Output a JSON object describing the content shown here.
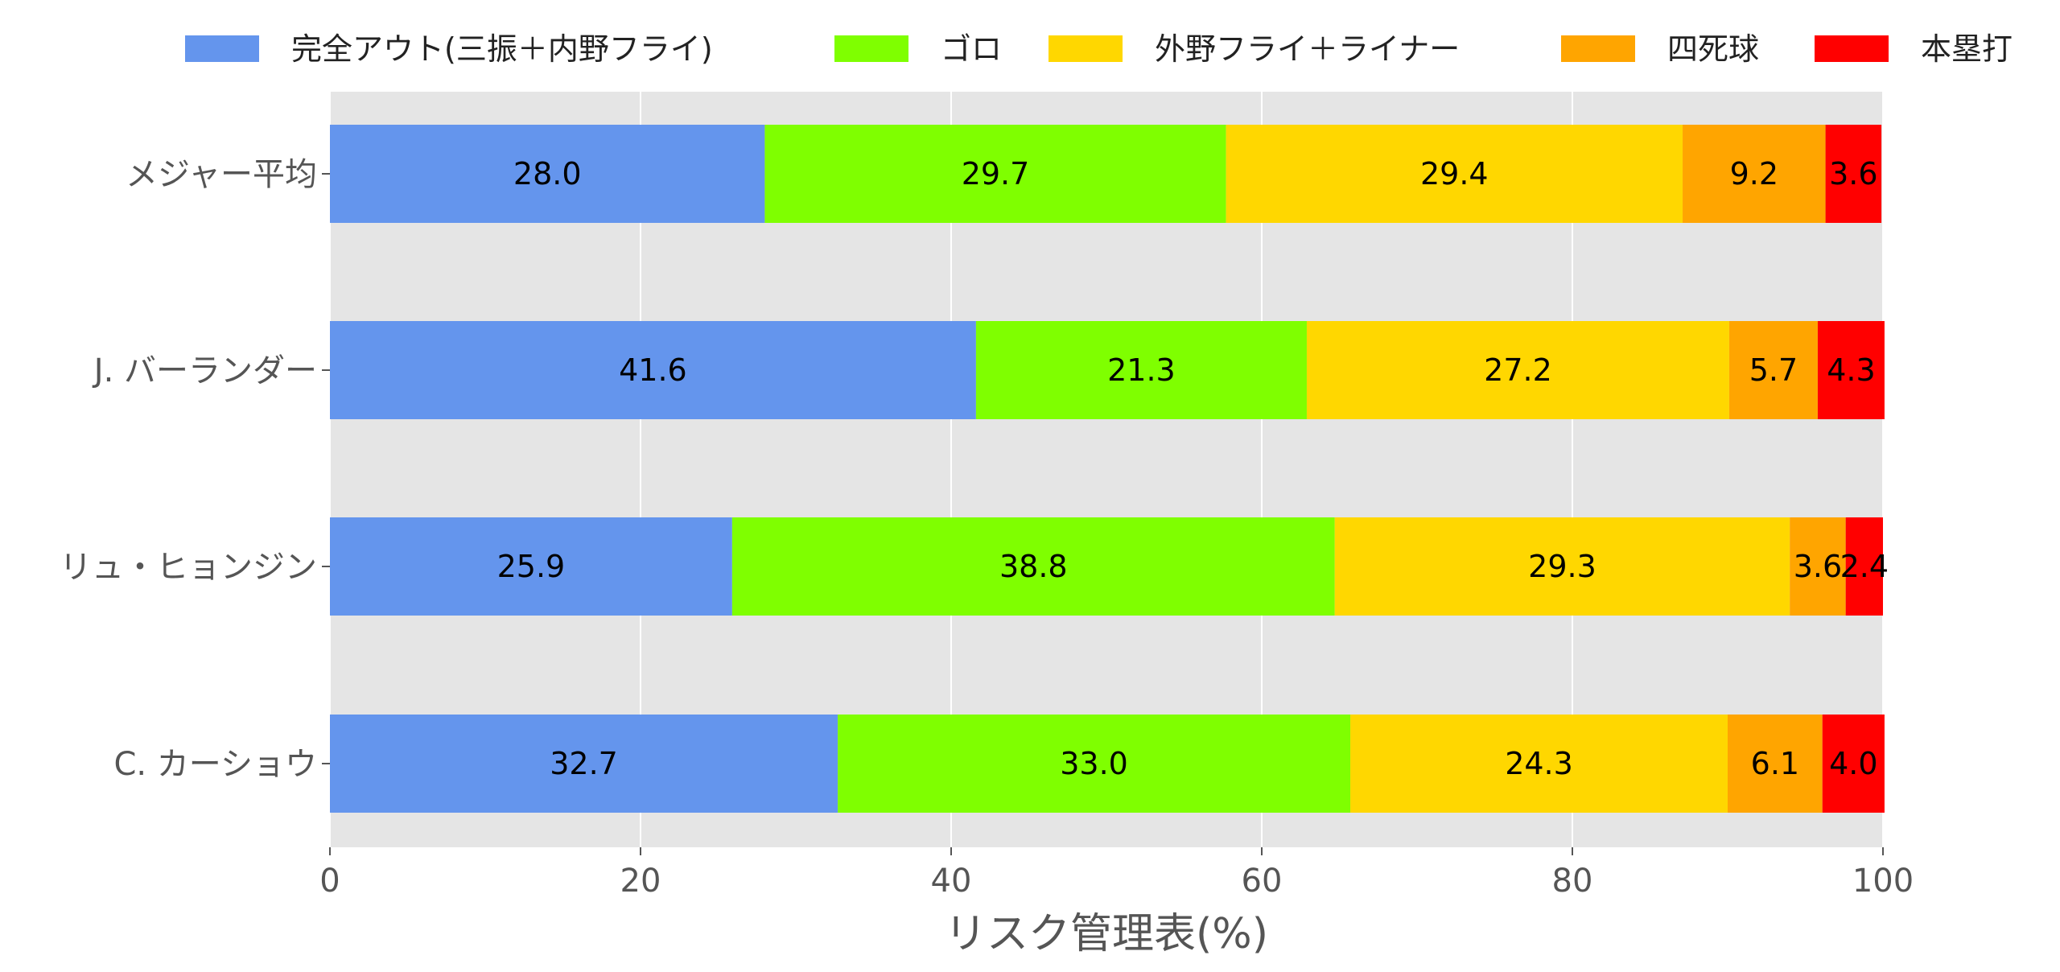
{
  "chart_data": {
    "type": "bar",
    "orientation": "horizontal",
    "stacked": true,
    "title": "",
    "xlabel": "リスク管理表(%)",
    "ylabel": "",
    "xlim": [
      0,
      100
    ],
    "xticks": [
      0,
      20,
      40,
      60,
      80,
      100
    ],
    "grid": true,
    "legend_position": "top",
    "categories": [
      "メジャー平均",
      "J. バーランダー",
      "リュ・ヒョンジン",
      "C. カーショウ"
    ],
    "series": [
      {
        "name": "完全アウト(三振＋内野フライ)",
        "color": "#6495ED",
        "values": [
          28.0,
          41.6,
          25.9,
          32.7
        ]
      },
      {
        "name": "ゴロ",
        "color": "#7FFF00",
        "values": [
          29.7,
          21.3,
          38.8,
          33.0
        ]
      },
      {
        "name": "外野フライ＋ライナー",
        "color": "#FFD700",
        "values": [
          29.4,
          27.2,
          29.3,
          24.3
        ]
      },
      {
        "name": "四死球",
        "color": "#FFA500",
        "values": [
          9.2,
          5.7,
          3.6,
          6.1
        ]
      },
      {
        "name": "本塁打",
        "color": "#FF0000",
        "values": [
          3.6,
          4.3,
          2.4,
          4.0
        ]
      }
    ]
  }
}
